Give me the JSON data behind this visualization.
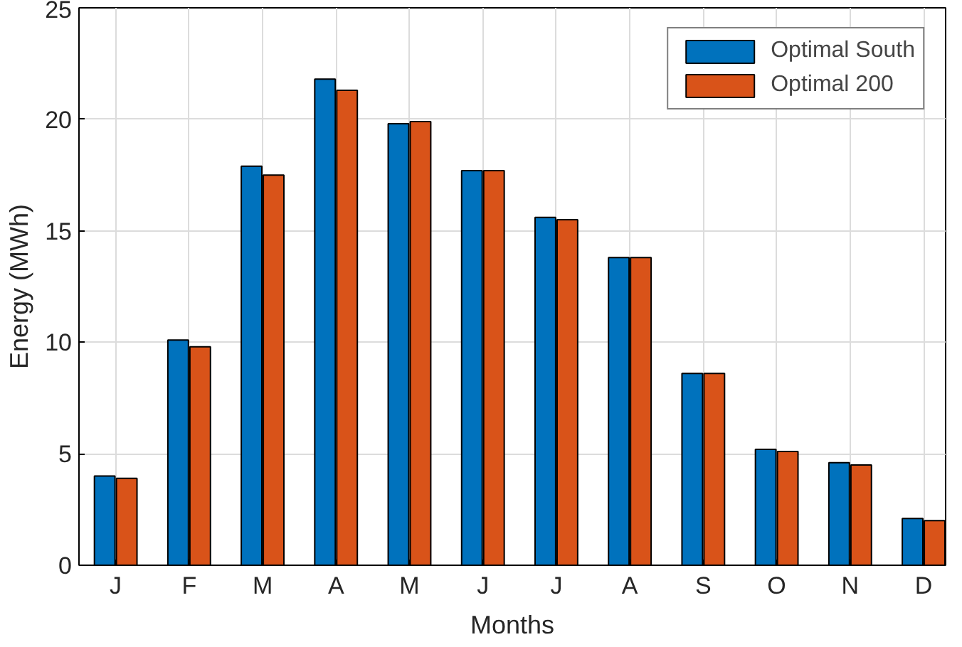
{
  "chart_data": {
    "type": "bar",
    "xlabel": "Months",
    "ylabel": "Energy (MWh)",
    "categories": [
      "J",
      "F",
      "M",
      "A",
      "M",
      "J",
      "J",
      "A",
      "S",
      "O",
      "N",
      "D"
    ],
    "series": [
      {
        "name": "Optimal South",
        "color": "#0072bd",
        "values": [
          4.0,
          10.1,
          17.9,
          21.8,
          19.8,
          17.7,
          15.6,
          13.8,
          8.6,
          5.2,
          4.6,
          2.1
        ]
      },
      {
        "name": "Optimal 200",
        "color": "#d95319",
        "values": [
          3.9,
          9.8,
          17.5,
          21.3,
          19.9,
          17.7,
          15.5,
          13.8,
          8.6,
          5.1,
          4.5,
          2.0
        ]
      }
    ],
    "ylim": [
      0,
      25
    ],
    "yticks": [
      0,
      5,
      10,
      15,
      20,
      25
    ],
    "grid": true,
    "legend": "top right"
  }
}
